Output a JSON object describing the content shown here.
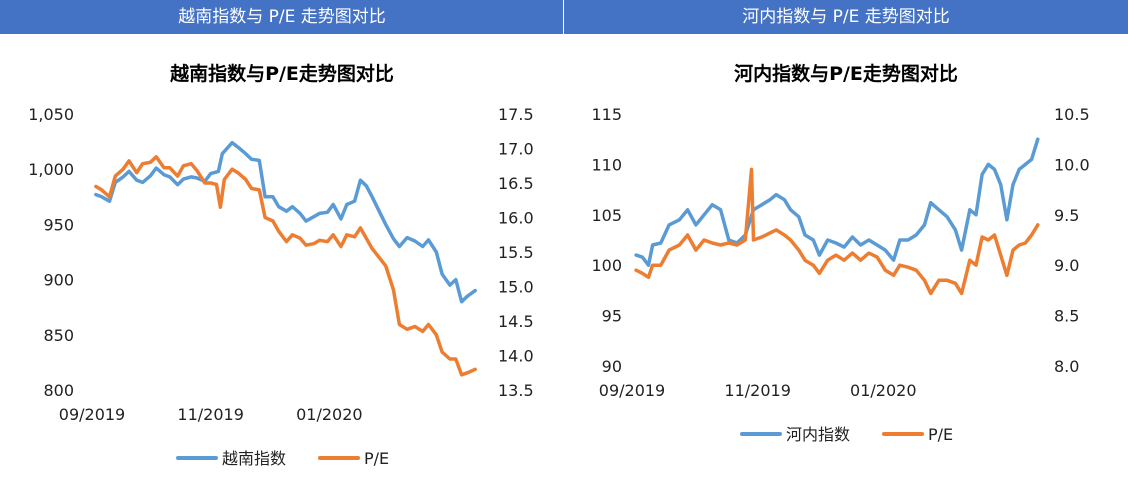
{
  "headers": {
    "left": "越南指数与 P/E 走势图对比",
    "right": "河内指数与 P/E 走势图对比"
  },
  "colors": {
    "header_bg": "#4472c4",
    "index_line": "#5b9bd5",
    "pe_line": "#ed7d31"
  },
  "chart_data": [
    {
      "type": "line",
      "title": "越南指数与P/E走势图对比",
      "x_ticks": [
        "09/2019",
        "11/2019",
        "01/2020"
      ],
      "x_tick_dates": [
        "2019-09-01",
        "2019-11-01",
        "2020-01-01"
      ],
      "x_range": [
        "2019-09-01",
        "2020-03-20"
      ],
      "y_left": {
        "range": [
          800,
          1050
        ],
        "ticks": [
          "800",
          "850",
          "900",
          "950",
          "1,000",
          "1,050"
        ]
      },
      "y_right": {
        "range": [
          13.5,
          17.5
        ],
        "ticks": [
          "13.5",
          "14.0",
          "14.5",
          "15.0",
          "15.5",
          "16.0",
          "16.5",
          "17.0",
          "17.5"
        ]
      },
      "legend": "bottom",
      "grid": false,
      "series": [
        {
          "name": "越南指数",
          "axis": "left",
          "points": [
            [
              "2019-09-03",
              977
            ],
            [
              "2019-09-06",
              975
            ],
            [
              "2019-09-10",
              971
            ],
            [
              "2019-09-13",
              988
            ],
            [
              "2019-09-17",
              993
            ],
            [
              "2019-09-20",
              998
            ],
            [
              "2019-09-24",
              990
            ],
            [
              "2019-09-27",
              988
            ],
            [
              "2019-10-01",
              994
            ],
            [
              "2019-10-04",
              1001
            ],
            [
              "2019-10-08",
              995
            ],
            [
              "2019-10-11",
              993
            ],
            [
              "2019-10-15",
              986
            ],
            [
              "2019-10-18",
              991
            ],
            [
              "2019-10-22",
              993
            ],
            [
              "2019-10-25",
              992
            ],
            [
              "2019-10-29",
              989
            ],
            [
              "2019-11-01",
              996
            ],
            [
              "2019-11-05",
              998
            ],
            [
              "2019-11-07",
              1014
            ],
            [
              "2019-11-12",
              1024
            ],
            [
              "2019-11-15",
              1020
            ],
            [
              "2019-11-19",
              1014
            ],
            [
              "2019-11-22",
              1009
            ],
            [
              "2019-11-26",
              1008
            ],
            [
              "2019-11-29",
              975
            ],
            [
              "2019-12-03",
              975
            ],
            [
              "2019-12-06",
              966
            ],
            [
              "2019-12-10",
              962
            ],
            [
              "2019-12-13",
              966
            ],
            [
              "2019-12-17",
              960
            ],
            [
              "2019-12-20",
              953
            ],
            [
              "2019-12-24",
              957
            ],
            [
              "2019-12-27",
              960
            ],
            [
              "2019-12-31",
              961
            ],
            [
              "2020-01-03",
              968
            ],
            [
              "2020-01-07",
              955
            ],
            [
              "2020-01-10",
              968
            ],
            [
              "2020-01-14",
              971
            ],
            [
              "2020-01-17",
              990
            ],
            [
              "2020-01-20",
              985
            ],
            [
              "2020-01-23",
              975
            ],
            [
              "2020-01-30",
              950
            ],
            [
              "2020-02-03",
              937
            ],
            [
              "2020-02-06",
              930
            ],
            [
              "2020-02-10",
              938
            ],
            [
              "2020-02-14",
              935
            ],
            [
              "2020-02-18",
              930
            ],
            [
              "2020-02-21",
              936
            ],
            [
              "2020-02-25",
              925
            ],
            [
              "2020-02-28",
              905
            ],
            [
              "2020-03-03",
              895
            ],
            [
              "2020-03-06",
              900
            ],
            [
              "2020-03-09",
              880
            ],
            [
              "2020-03-12",
              885
            ],
            [
              "2020-03-16",
              890
            ]
          ]
        },
        {
          "name": "P/E",
          "axis": "right",
          "points": [
            [
              "2019-09-03",
              16.45
            ],
            [
              "2019-09-06",
              16.4
            ],
            [
              "2019-09-10",
              16.3
            ],
            [
              "2019-09-13",
              16.6
            ],
            [
              "2019-09-17",
              16.7
            ],
            [
              "2019-09-20",
              16.82
            ],
            [
              "2019-09-24",
              16.65
            ],
            [
              "2019-09-27",
              16.78
            ],
            [
              "2019-10-01",
              16.8
            ],
            [
              "2019-10-04",
              16.88
            ],
            [
              "2019-10-08",
              16.72
            ],
            [
              "2019-10-11",
              16.72
            ],
            [
              "2019-10-15",
              16.6
            ],
            [
              "2019-10-18",
              16.75
            ],
            [
              "2019-10-22",
              16.78
            ],
            [
              "2019-10-25",
              16.68
            ],
            [
              "2019-10-29",
              16.5
            ],
            [
              "2019-11-01",
              16.5
            ],
            [
              "2019-11-04",
              16.48
            ],
            [
              "2019-11-06",
              16.15
            ],
            [
              "2019-11-08",
              16.55
            ],
            [
              "2019-11-12",
              16.7
            ],
            [
              "2019-11-15",
              16.65
            ],
            [
              "2019-11-19",
              16.55
            ],
            [
              "2019-11-22",
              16.42
            ],
            [
              "2019-11-26",
              16.4
            ],
            [
              "2019-11-29",
              16.0
            ],
            [
              "2019-12-03",
              15.95
            ],
            [
              "2019-12-06",
              15.8
            ],
            [
              "2019-12-10",
              15.65
            ],
            [
              "2019-12-13",
              15.75
            ],
            [
              "2019-12-17",
              15.7
            ],
            [
              "2019-12-20",
              15.6
            ],
            [
              "2019-12-24",
              15.62
            ],
            [
              "2019-12-27",
              15.67
            ],
            [
              "2019-12-31",
              15.65
            ],
            [
              "2020-01-03",
              15.75
            ],
            [
              "2020-01-07",
              15.58
            ],
            [
              "2020-01-10",
              15.75
            ],
            [
              "2020-01-14",
              15.72
            ],
            [
              "2020-01-17",
              15.85
            ],
            [
              "2020-01-23",
              15.55
            ],
            [
              "2020-01-30",
              15.3
            ],
            [
              "2020-02-03",
              14.95
            ],
            [
              "2020-02-06",
              14.45
            ],
            [
              "2020-02-10",
              14.38
            ],
            [
              "2020-02-14",
              14.42
            ],
            [
              "2020-02-18",
              14.35
            ],
            [
              "2020-02-21",
              14.45
            ],
            [
              "2020-02-25",
              14.3
            ],
            [
              "2020-02-28",
              14.05
            ],
            [
              "2020-03-03",
              13.95
            ],
            [
              "2020-03-06",
              13.95
            ],
            [
              "2020-03-09",
              13.72
            ],
            [
              "2020-03-12",
              13.75
            ],
            [
              "2020-03-16",
              13.8
            ]
          ]
        }
      ]
    },
    {
      "type": "line",
      "title": "河内指数与P/E走势图对比",
      "x_ticks": [
        "09/2019",
        "11/2019",
        "01/2020"
      ],
      "x_tick_dates": [
        "2019-09-01",
        "2019-11-01",
        "2020-01-01"
      ],
      "x_range": [
        "2019-09-01",
        "2020-03-20"
      ],
      "y_left": {
        "range": [
          90,
          115
        ],
        "ticks": [
          "90",
          "95",
          "100",
          "105",
          "110",
          "115"
        ]
      },
      "y_right": {
        "range": [
          8.0,
          10.5
        ],
        "ticks": [
          "8.0",
          "8.5",
          "9.0",
          "9.5",
          "10.0",
          "10.5"
        ]
      },
      "legend": "bottom",
      "grid": false,
      "series": [
        {
          "name": "河内指数",
          "axis": "left",
          "points": [
            [
              "2019-09-03",
              101
            ],
            [
              "2019-09-06",
              100.8
            ],
            [
              "2019-09-09",
              100
            ],
            [
              "2019-09-11",
              102
            ],
            [
              "2019-09-15",
              102.2
            ],
            [
              "2019-09-19",
              104
            ],
            [
              "2019-09-24",
              104.5
            ],
            [
              "2019-09-28",
              105.5
            ],
            [
              "2019-10-02",
              104
            ],
            [
              "2019-10-06",
              105
            ],
            [
              "2019-10-10",
              106
            ],
            [
              "2019-10-14",
              105.5
            ],
            [
              "2019-10-16",
              104
            ],
            [
              "2019-10-18",
              102.5
            ],
            [
              "2019-10-22",
              102.2
            ],
            [
              "2019-10-26",
              103
            ],
            [
              "2019-10-30",
              105.5
            ],
            [
              "2019-11-03",
              106
            ],
            [
              "2019-11-07",
              106.5
            ],
            [
              "2019-11-10",
              107
            ],
            [
              "2019-11-14",
              106.5
            ],
            [
              "2019-11-17",
              105.5
            ],
            [
              "2019-11-21",
              104.8
            ],
            [
              "2019-11-24",
              103
            ],
            [
              "2019-11-28",
              102.5
            ],
            [
              "2019-12-01",
              101
            ],
            [
              "2019-12-05",
              102.5
            ],
            [
              "2019-12-09",
              102.2
            ],
            [
              "2019-12-13",
              101.8
            ],
            [
              "2019-12-17",
              102.8
            ],
            [
              "2019-12-21",
              102
            ],
            [
              "2019-12-25",
              102.5
            ],
            [
              "2019-12-29",
              102
            ],
            [
              "2020-01-02",
              101.5
            ],
            [
              "2020-01-06",
              100.5
            ],
            [
              "2020-01-09",
              102.5
            ],
            [
              "2020-01-13",
              102.5
            ],
            [
              "2020-01-17",
              103
            ],
            [
              "2020-01-21",
              104
            ],
            [
              "2020-01-24",
              106.2
            ],
            [
              "2020-01-28",
              105.5
            ],
            [
              "2020-02-01",
              104.8
            ],
            [
              "2020-02-05",
              103.5
            ],
            [
              "2020-02-08",
              101.5
            ],
            [
              "2020-02-12",
              105.5
            ],
            [
              "2020-02-15",
              105
            ],
            [
              "2020-02-18",
              109
            ],
            [
              "2020-02-21",
              110
            ],
            [
              "2020-02-24",
              109.5
            ],
            [
              "2020-02-27",
              108
            ],
            [
              "2020-03-01",
              104.5
            ],
            [
              "2020-03-04",
              108
            ],
            [
              "2020-03-07",
              109.5
            ],
            [
              "2020-03-10",
              110
            ],
            [
              "2020-03-13",
              110.5
            ],
            [
              "2020-03-16",
              112.5
            ]
          ]
        },
        {
          "name": "P/E",
          "axis": "right",
          "points": [
            [
              "2019-09-03",
              8.95
            ],
            [
              "2019-09-06",
              8.92
            ],
            [
              "2019-09-09",
              8.88
            ],
            [
              "2019-09-11",
              9.0
            ],
            [
              "2019-09-15",
              9.0
            ],
            [
              "2019-09-19",
              9.15
            ],
            [
              "2019-09-24",
              9.2
            ],
            [
              "2019-09-28",
              9.3
            ],
            [
              "2019-10-02",
              9.15
            ],
            [
              "2019-10-06",
              9.25
            ],
            [
              "2019-10-10",
              9.22
            ],
            [
              "2019-10-14",
              9.2
            ],
            [
              "2019-10-18",
              9.22
            ],
            [
              "2019-10-22",
              9.2
            ],
            [
              "2019-10-26",
              9.25
            ],
            [
              "2019-10-29",
              9.95
            ],
            [
              "2019-10-30",
              9.25
            ],
            [
              "2019-11-03",
              9.28
            ],
            [
              "2019-11-07",
              9.32
            ],
            [
              "2019-11-10",
              9.35
            ],
            [
              "2019-11-14",
              9.3
            ],
            [
              "2019-11-17",
              9.25
            ],
            [
              "2019-11-21",
              9.15
            ],
            [
              "2019-11-24",
              9.05
            ],
            [
              "2019-11-28",
              9.0
            ],
            [
              "2019-12-01",
              8.92
            ],
            [
              "2019-12-05",
              9.05
            ],
            [
              "2019-12-09",
              9.1
            ],
            [
              "2019-12-13",
              9.05
            ],
            [
              "2019-12-17",
              9.12
            ],
            [
              "2019-12-21",
              9.05
            ],
            [
              "2019-12-25",
              9.12
            ],
            [
              "2019-12-29",
              9.08
            ],
            [
              "2020-01-02",
              8.95
            ],
            [
              "2020-01-06",
              8.9
            ],
            [
              "2020-01-09",
              9.0
            ],
            [
              "2020-01-13",
              8.98
            ],
            [
              "2020-01-17",
              8.95
            ],
            [
              "2020-01-21",
              8.85
            ],
            [
              "2020-01-24",
              8.72
            ],
            [
              "2020-01-28",
              8.85
            ],
            [
              "2020-02-01",
              8.85
            ],
            [
              "2020-02-05",
              8.82
            ],
            [
              "2020-02-08",
              8.72
            ],
            [
              "2020-02-12",
              9.05
            ],
            [
              "2020-02-15",
              9.0
            ],
            [
              "2020-02-18",
              9.28
            ],
            [
              "2020-02-21",
              9.25
            ],
            [
              "2020-02-24",
              9.3
            ],
            [
              "2020-02-27",
              9.1
            ],
            [
              "2020-03-01",
              8.9
            ],
            [
              "2020-03-04",
              9.15
            ],
            [
              "2020-03-07",
              9.2
            ],
            [
              "2020-03-10",
              9.22
            ],
            [
              "2020-03-13",
              9.3
            ],
            [
              "2020-03-16",
              9.4
            ]
          ]
        }
      ]
    }
  ]
}
